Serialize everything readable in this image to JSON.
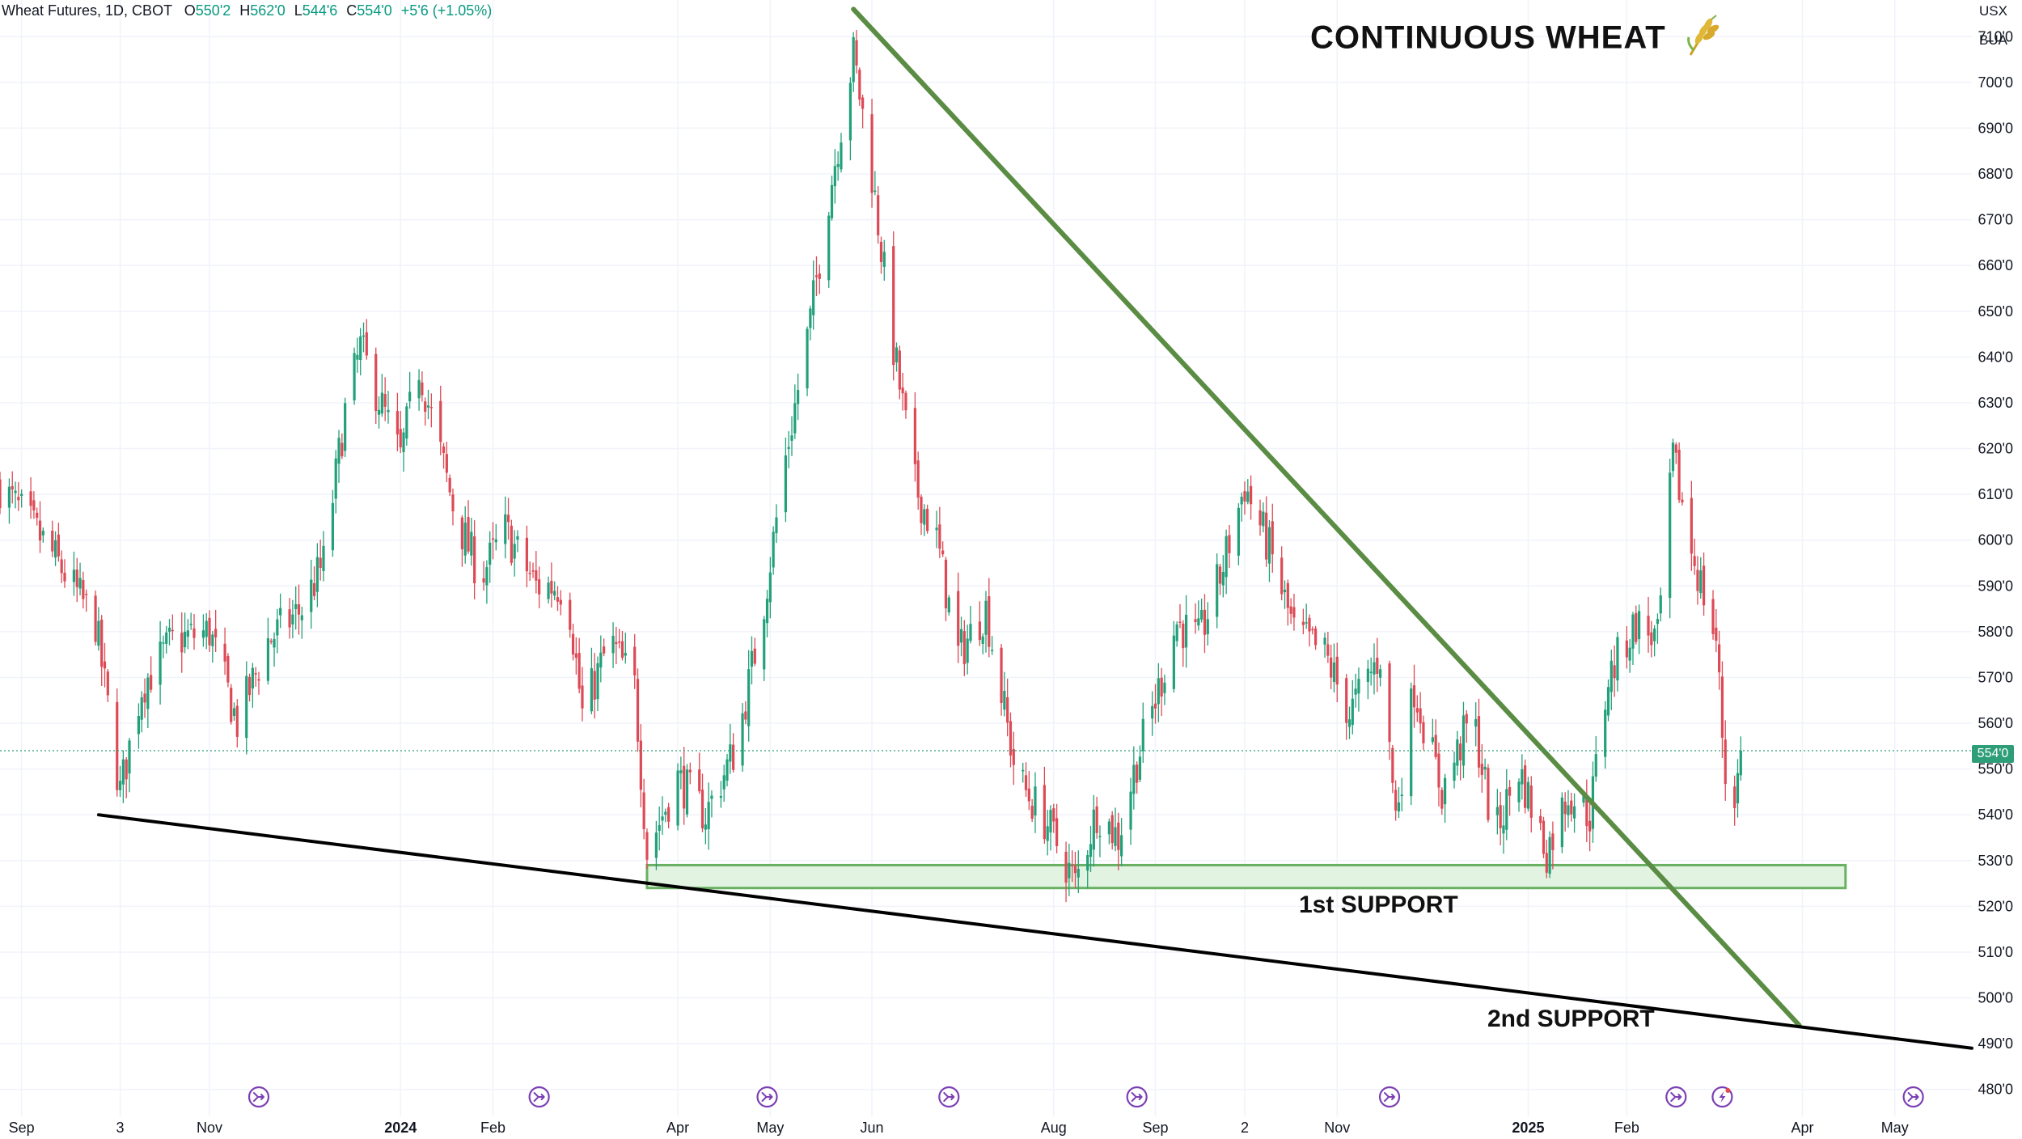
{
  "header": {
    "symbol": "Wheat Futures, 1D, CBOT",
    "o_label": "O",
    "o_value": "550'2",
    "h_label": "H",
    "h_value": "562'0",
    "l_label": "L",
    "l_value": "544'6",
    "c_label": "C",
    "c_value": "554'0",
    "change": "+5'6 (+1.05%)"
  },
  "title": "CONTINUOUS WHEAT",
  "units": {
    "currency": "USX",
    "unit": "BUA"
  },
  "last_price_label": "554'0",
  "annotations": {
    "support1": "1st SUPPORT",
    "support2": "2nd SUPPORT"
  },
  "colors": {
    "up": "#22a07a",
    "down": "#dd4a55",
    "trendline": "#5a8c43",
    "support_line": "#000000",
    "zone_fill": "#e2f3e2",
    "zone_border": "#6ab063",
    "grid": "#f0f3fa",
    "axis_text": "#131722",
    "event_icon": "#7b3fb5"
  },
  "icons": {
    "title_icon": "wheat-icon",
    "event_icon": "split-arrow-icon",
    "flash_icon": "lightning-icon"
  },
  "chart_data": {
    "type": "candlestick",
    "title": "CONTINUOUS WHEAT",
    "ylim": [
      475,
      718
    ],
    "y_ticks": [
      480,
      490,
      500,
      510,
      520,
      530,
      540,
      550,
      560,
      570,
      580,
      590,
      600,
      610,
      620,
      630,
      640,
      650,
      660,
      670,
      680,
      690,
      700,
      710
    ],
    "y_tick_labels": [
      "480'0",
      "490'0",
      "500'0",
      "510'0",
      "520'0",
      "530'0",
      "540'0",
      "550'0",
      "560'0",
      "570'0",
      "580'0",
      "590'0",
      "600'0",
      "610'0",
      "620'0",
      "630'0",
      "640'0",
      "650'0",
      "660'0",
      "670'0",
      "680'0",
      "690'0",
      "700'0",
      "710'0"
    ],
    "x_start": "2023-08-25",
    "x_end": "2025-05-26",
    "x_ticks": [
      {
        "date": "2023-09-01",
        "label": "Sep",
        "bold": false
      },
      {
        "date": "2023-10-03",
        "label": "3",
        "bold": false
      },
      {
        "date": "2023-11-01",
        "label": "Nov",
        "bold": false
      },
      {
        "date": "2024-01-02",
        "label": "2024",
        "bold": true
      },
      {
        "date": "2024-02-01",
        "label": "Feb",
        "bold": false
      },
      {
        "date": "2024-04-01",
        "label": "Apr",
        "bold": false
      },
      {
        "date": "2024-05-01",
        "label": "May",
        "bold": false
      },
      {
        "date": "2024-06-03",
        "label": "Jun",
        "bold": false
      },
      {
        "date": "2024-08-01",
        "label": "Aug",
        "bold": false
      },
      {
        "date": "2024-09-03",
        "label": "Sep",
        "bold": false
      },
      {
        "date": "2024-10-02",
        "label": "2",
        "bold": false
      },
      {
        "date": "2024-11-01",
        "label": "Nov",
        "bold": false
      },
      {
        "date": "2025-01-02",
        "label": "2025",
        "bold": true
      },
      {
        "date": "2025-02-03",
        "label": "Feb",
        "bold": false
      },
      {
        "date": "2025-04-01",
        "label": "Apr",
        "bold": false
      },
      {
        "date": "2025-05-01",
        "label": "May",
        "bold": false
      }
    ],
    "close_path": [
      [
        "2023-08-25",
        612
      ],
      [
        "2023-09-10",
        598
      ],
      [
        "2023-09-25",
        582
      ],
      [
        "2023-10-03",
        545
      ],
      [
        "2023-10-10",
        568
      ],
      [
        "2023-10-20",
        578
      ],
      [
        "2023-11-01",
        580
      ],
      [
        "2023-11-10",
        560
      ],
      [
        "2023-11-20",
        578
      ],
      [
        "2023-12-01",
        585
      ],
      [
        "2023-12-08",
        595
      ],
      [
        "2023-12-15",
        628
      ],
      [
        "2023-12-20",
        642
      ],
      [
        "2024-01-02",
        618
      ],
      [
        "2024-01-08",
        638
      ],
      [
        "2024-01-20",
        605
      ],
      [
        "2024-01-28",
        592
      ],
      [
        "2024-02-05",
        602
      ],
      [
        "2024-02-15",
        590
      ],
      [
        "2024-02-25",
        590
      ],
      [
        "2024-03-01",
        562
      ],
      [
        "2024-03-10",
        578
      ],
      [
        "2024-03-18",
        568
      ],
      [
        "2024-03-22",
        532
      ],
      [
        "2024-04-01",
        548
      ],
      [
        "2024-04-10",
        540
      ],
      [
        "2024-04-20",
        555
      ],
      [
        "2024-04-28",
        582
      ],
      [
        "2024-05-06",
        618
      ],
      [
        "2024-05-14",
        648
      ],
      [
        "2024-05-20",
        675
      ],
      [
        "2024-05-28",
        706
      ],
      [
        "2024-06-03",
        680
      ],
      [
        "2024-06-10",
        642
      ],
      [
        "2024-06-17",
        612
      ],
      [
        "2024-06-24",
        600
      ],
      [
        "2024-07-01",
        575
      ],
      [
        "2024-07-10",
        585
      ],
      [
        "2024-07-20",
        548
      ],
      [
        "2024-07-30",
        538
      ],
      [
        "2024-08-08",
        525
      ],
      [
        "2024-08-15",
        541
      ],
      [
        "2024-08-22",
        535
      ],
      [
        "2024-08-28",
        552
      ],
      [
        "2024-09-03",
        565
      ],
      [
        "2024-09-10",
        582
      ],
      [
        "2024-09-17",
        578
      ],
      [
        "2024-09-24",
        592
      ],
      [
        "2024-10-02",
        612
      ],
      [
        "2024-10-10",
        598
      ],
      [
        "2024-10-18",
        580
      ],
      [
        "2024-10-28",
        575
      ],
      [
        "2024-11-05",
        562
      ],
      [
        "2024-11-15",
        575
      ],
      [
        "2024-11-20",
        540
      ],
      [
        "2024-11-26",
        568
      ],
      [
        "2024-12-05",
        545
      ],
      [
        "2024-12-15",
        562
      ],
      [
        "2024-12-22",
        535
      ],
      [
        "2024-12-30",
        550
      ],
      [
        "2025-01-08",
        532
      ],
      [
        "2025-01-15",
        545
      ],
      [
        "2025-01-22",
        540
      ],
      [
        "2025-01-28",
        570
      ],
      [
        "2025-02-06",
        582
      ],
      [
        "2025-02-13",
        578
      ],
      [
        "2025-02-18",
        618
      ],
      [
        "2025-02-24",
        598
      ],
      [
        "2025-03-04",
        578
      ],
      [
        "2025-03-08",
        538
      ],
      [
        "2025-03-11",
        548
      ],
      [
        "2025-03-12",
        554
      ]
    ],
    "trendlines": [
      {
        "name": "downtrend",
        "from": [
          "2024-05-28",
          716
        ],
        "to": [
          "2025-03-31",
          494
        ]
      },
      {
        "name": "2nd support",
        "from": [
          "2023-09-26",
          540
        ],
        "to": [
          "2025-05-26",
          489
        ]
      }
    ],
    "support_zone": {
      "name": "1st SUPPORT",
      "from": "2024-03-22",
      "to": "2025-04-15",
      "low": 524,
      "high": 529
    },
    "last_price": 554,
    "event_dates": [
      "2023-11-17",
      "2024-02-16",
      "2024-04-30",
      "2024-06-28",
      "2024-08-28",
      "2024-11-18",
      "2025-02-19",
      "2025-05-07"
    ],
    "flash_event_date": "2025-03-06"
  }
}
